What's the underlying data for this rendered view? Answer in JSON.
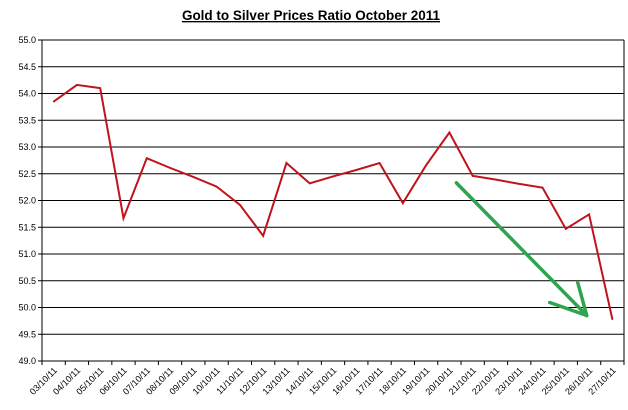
{
  "chart_data": {
    "type": "line",
    "title": "Gold to Silver Prices Ratio October 2011",
    "xlabel": "",
    "ylabel": "",
    "ylim": [
      49.0,
      55.0
    ],
    "ystep": 0.5,
    "yticks": [
      "49.0",
      "49.5",
      "50.0",
      "50.5",
      "51.0",
      "51.5",
      "52.0",
      "52.5",
      "53.0",
      "53.5",
      "54.0",
      "54.5",
      "55.0"
    ],
    "grid": true,
    "legend": "none",
    "categories": [
      "03/10/11",
      "04/10/11",
      "05/10/11",
      "06/10/11",
      "07/10/11",
      "08/10/11",
      "09/10/11",
      "10/10/11",
      "11/10/11",
      "12/10/11",
      "13/10/11",
      "14/10/11",
      "15/10/11",
      "16/10/11",
      "17/10/11",
      "18/10/11",
      "19/10/11",
      "20/10/11",
      "21/10/11",
      "22/10/11",
      "23/10/11",
      "24/10/11",
      "25/10/11",
      "26/10/11",
      "27/10/11"
    ],
    "series": [
      {
        "color": "#c0141c",
        "values": [
          53.85,
          54.16,
          54.1,
          51.67,
          52.79,
          52.61,
          52.44,
          52.26,
          51.92,
          51.34,
          52.7,
          52.32,
          52.45,
          52.57,
          52.7,
          51.95,
          52.66,
          53.27,
          52.46,
          52.39,
          52.31,
          52.24,
          51.47,
          51.74,
          49.78
        ]
      }
    ],
    "annotations": [
      {
        "type": "arrow",
        "color": "#2ea44f",
        "from": {
          "x": "20/10/11",
          "y": 52.33
        },
        "to": {
          "x": "26/10/11",
          "y": 49.85
        }
      }
    ]
  }
}
